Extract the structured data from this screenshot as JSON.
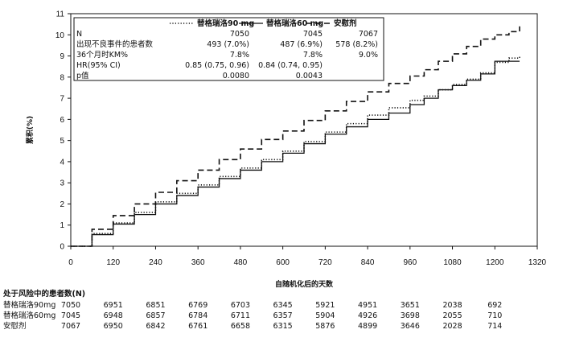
{
  "chart_data": {
    "type": "line",
    "title": "",
    "xlabel": "自随机化后的天数",
    "ylabel": "累积(%)",
    "xlim": [
      0,
      1320
    ],
    "ylim": [
      0,
      11
    ],
    "x_ticks": [
      0,
      120,
      240,
      360,
      480,
      600,
      720,
      840,
      960,
      1080,
      1200,
      1320
    ],
    "y_ticks": [
      0,
      1,
      2,
      3,
      4,
      5,
      6,
      7,
      8,
      9,
      10,
      11
    ],
    "grid": false,
    "series": [
      {
        "name": "替格瑞洛90 mg",
        "style": "dotted",
        "x": [
          0,
          60,
          120,
          180,
          240,
          300,
          360,
          420,
          480,
          540,
          600,
          660,
          720,
          780,
          840,
          900,
          960,
          1000,
          1040,
          1080,
          1120,
          1160,
          1200,
          1240,
          1270
        ],
        "y": [
          0,
          0.6,
          1.1,
          1.6,
          2.1,
          2.5,
          2.9,
          3.3,
          3.7,
          4.1,
          4.5,
          4.95,
          5.4,
          5.8,
          6.2,
          6.55,
          6.9,
          7.1,
          7.4,
          7.65,
          7.9,
          8.2,
          8.7,
          8.9,
          9.0
        ]
      },
      {
        "name": "替格瑞洛60 mg",
        "style": "solid",
        "x": [
          0,
          60,
          120,
          180,
          240,
          300,
          360,
          420,
          480,
          540,
          600,
          660,
          720,
          780,
          840,
          900,
          960,
          1000,
          1040,
          1080,
          1120,
          1160,
          1200,
          1240,
          1270
        ],
        "y": [
          0,
          0.55,
          1.05,
          1.5,
          2.0,
          2.4,
          2.8,
          3.2,
          3.6,
          4.0,
          4.4,
          4.85,
          5.3,
          5.65,
          6.0,
          6.3,
          6.7,
          7.0,
          7.4,
          7.6,
          7.85,
          8.15,
          8.75,
          8.75,
          8.75
        ]
      },
      {
        "name": "安慰剂",
        "style": "dashed",
        "x": [
          0,
          60,
          120,
          180,
          240,
          300,
          360,
          420,
          480,
          540,
          600,
          660,
          720,
          780,
          840,
          900,
          960,
          1000,
          1040,
          1080,
          1120,
          1160,
          1200,
          1240,
          1270
        ],
        "y": [
          0,
          0.8,
          1.45,
          2.0,
          2.55,
          3.1,
          3.6,
          4.1,
          4.6,
          5.05,
          5.45,
          5.95,
          6.4,
          6.85,
          7.3,
          7.7,
          8.05,
          8.35,
          8.75,
          9.1,
          9.45,
          9.8,
          10.0,
          10.15,
          10.4
        ]
      }
    ],
    "legend": {
      "placement": "top-left",
      "row_labels": [
        "N",
        "出现不良事件的患者数",
        "36个月时KM%",
        "HR(95% CI)",
        "p值"
      ],
      "columns": [
        {
          "name": "替格瑞洛90 mg",
          "values": [
            "7050",
            "493 (7.0%)",
            "7.8%",
            "0.85 (0.75, 0.96)",
            "0.0080"
          ]
        },
        {
          "name": "替格瑞洛60 mg",
          "values": [
            "7045",
            "487 (6.9%)",
            "7.8%",
            "0.84 (0.74, 0.95)",
            "0.0043"
          ]
        },
        {
          "name": "安慰剂",
          "values": [
            "7067",
            "578 (8.2%)",
            "9.0%",
            "",
            ""
          ]
        }
      ]
    },
    "risk_table": {
      "title": "处于风险中的患者数(N)",
      "rows": [
        {
          "label": "替格瑞洛90mg",
          "values": [
            "7050",
            "6951",
            "6851",
            "6769",
            "6703",
            "6345",
            "5921",
            "4951",
            "3651",
            "2038",
            "692"
          ]
        },
        {
          "label": "替格瑞洛60mg",
          "values": [
            "7045",
            "6948",
            "6857",
            "6784",
            "6711",
            "6357",
            "5904",
            "4926",
            "3698",
            "2055",
            "710"
          ]
        },
        {
          "label": "安慰剂",
          "values": [
            "7067",
            "6950",
            "6842",
            "6761",
            "6658",
            "6315",
            "5876",
            "4899",
            "3646",
            "2028",
            "714"
          ]
        }
      ]
    }
  }
}
